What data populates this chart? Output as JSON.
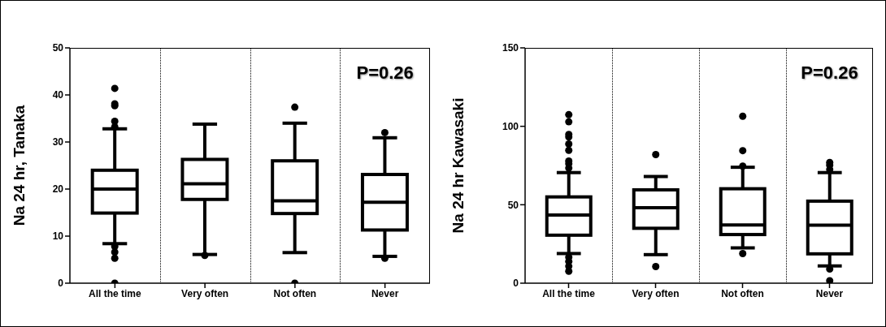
{
  "chart_data": [
    {
      "type": "box",
      "ylabel": "Na 24 hr, Tanaka",
      "categories": [
        "All the time",
        "Very often",
        "Not often",
        "Never"
      ],
      "ylim": [
        0,
        50
      ],
      "yticks": [
        0,
        10,
        20,
        30,
        40,
        50
      ],
      "annotations": [
        "P=0.26"
      ],
      "color": "#000000",
      "boxes": [
        {
          "low": 8.4,
          "q1": 14.9,
          "median": 20,
          "q3": 24,
          "high": 32.8,
          "outliers": [
            41.4,
            38.1,
            37.7,
            34.4,
            33.2,
            7.8,
            6.6,
            5.3,
            0
          ]
        },
        {
          "low": 6.1,
          "q1": 17.8,
          "median": 21.1,
          "q3": 26.3,
          "high": 33.8,
          "outliers": [
            5.9
          ]
        },
        {
          "low": 6.5,
          "q1": 14.8,
          "median": 17.5,
          "q3": 26,
          "high": 34,
          "outliers": [
            37.4,
            0
          ]
        },
        {
          "low": 5.7,
          "q1": 11.3,
          "median": 17.2,
          "q3": 23.1,
          "high": 30.9,
          "outliers": [
            32,
            5.3
          ]
        }
      ]
    },
    {
      "type": "box",
      "ylabel": "Na 24 hr Kawasaki",
      "categories": [
        "All the time",
        "Very often",
        "Not often",
        "Never"
      ],
      "ylim": [
        0,
        150
      ],
      "yticks": [
        0,
        50,
        100,
        150
      ],
      "annotations": [
        "P=0.26"
      ],
      "color": "#000000",
      "boxes": [
        {
          "low": 18.9,
          "q1": 30.6,
          "median": 43.4,
          "q3": 55,
          "high": 70.5,
          "outliers": [
            107.4,
            102.9,
            94.8,
            93.2,
            88.7,
            84.7,
            77.9,
            76.1,
            73.4,
            16.6,
            13.9,
            10.8,
            7.6
          ]
        },
        {
          "low": 18.2,
          "q1": 35,
          "median": 48.1,
          "q3": 59.5,
          "high": 68,
          "outliers": [
            82,
            10.6
          ]
        },
        {
          "low": 22.5,
          "q1": 31,
          "median": 37.1,
          "q3": 60.2,
          "high": 73.9,
          "outliers": [
            106.4,
            84.5,
            74.6,
            18.9
          ]
        },
        {
          "low": 11,
          "q1": 18.7,
          "median": 37,
          "q3": 52.3,
          "high": 70.5,
          "outliers": [
            77,
            75.2,
            72.5,
            9,
            1.6
          ]
        }
      ]
    }
  ]
}
